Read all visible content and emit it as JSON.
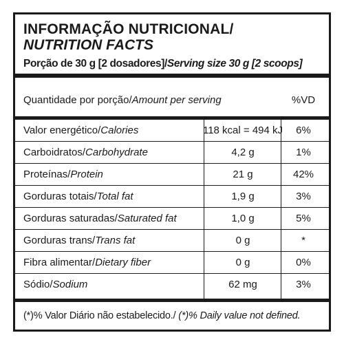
{
  "title": {
    "pt": "INFORMAÇÃO NUTRICIONAL/",
    "en": "NUTRITION FACTS"
  },
  "serving": {
    "pt": "Porção de 30 g [2 dosadores]/",
    "en": "Serving size 30 g [2 scoops]"
  },
  "header": {
    "amount_pt": "Quantidade por porção/",
    "amount_en": "Amount per serving",
    "dv": "%VD"
  },
  "rows": [
    {
      "pt": "Valor energético/",
      "en": "Calories",
      "amount": "118 kcal = 494 kJ",
      "dv": "6%"
    },
    {
      "pt": "Carboidratos/",
      "en": "Carbohydrate",
      "amount": "4,2 g",
      "dv": "1%"
    },
    {
      "pt": "Proteínas/",
      "en": "Protein",
      "amount": "21 g",
      "dv": "42%"
    },
    {
      "pt": "Gorduras totais/",
      "en": "Total fat",
      "amount": "1,9 g",
      "dv": "3%"
    },
    {
      "pt": "Gorduras saturadas/",
      "en": "Saturated fat",
      "amount": "1,0 g",
      "dv": "5%"
    },
    {
      "pt": "Gorduras trans/",
      "en": "Trans fat",
      "amount": "0 g",
      "dv": "*"
    },
    {
      "pt": "Fibra alimentar/",
      "en": "Dietary fiber",
      "amount": "0 g",
      "dv": "0%"
    },
    {
      "pt": "Sódio/",
      "en": "Sodium",
      "amount": "62 mg",
      "dv": "3%"
    }
  ],
  "footnote": {
    "pt": "(*)% Valor Diário não estabelecido./",
    "en": "(*)% Daily value not defined."
  }
}
